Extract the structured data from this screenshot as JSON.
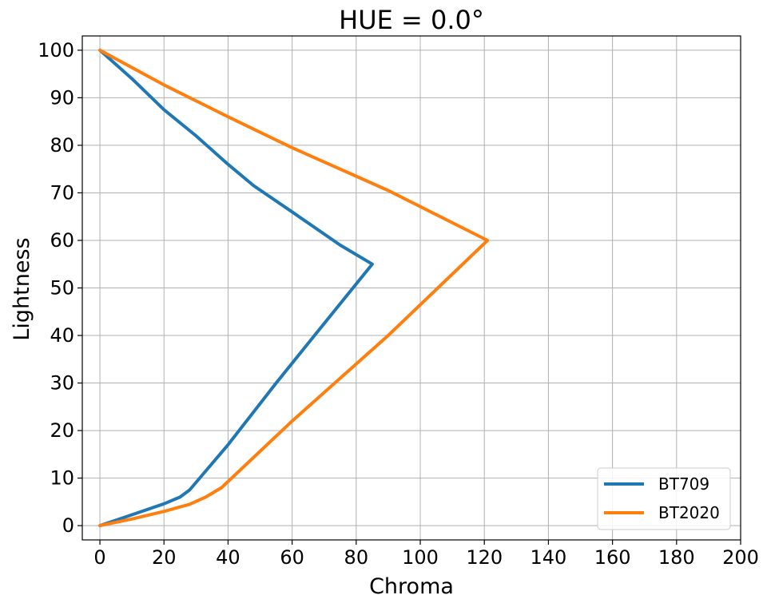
{
  "chart_data": {
    "type": "line",
    "title": "HUE = 0.0°",
    "xlabel": "Chroma",
    "ylabel": "Lightness",
    "xlim": [
      -5.5,
      200
    ],
    "ylim": [
      -3,
      103
    ],
    "xticks": [
      0,
      20,
      40,
      60,
      80,
      100,
      120,
      140,
      160,
      180,
      200
    ],
    "yticks": [
      0,
      10,
      20,
      30,
      40,
      50,
      60,
      70,
      80,
      90,
      100
    ],
    "grid": true,
    "legend_position": "lower-right",
    "series": [
      {
        "name": "BT709",
        "color": "#1f77b4",
        "points": [
          [
            0,
            0
          ],
          [
            10,
            2.3
          ],
          [
            20,
            4.6
          ],
          [
            25,
            6.0
          ],
          [
            28,
            7.5
          ],
          [
            40,
            17
          ],
          [
            55,
            30
          ],
          [
            70,
            42.5
          ],
          [
            85,
            55
          ],
          [
            75,
            59
          ],
          [
            60,
            66
          ],
          [
            48,
            71.5
          ],
          [
            40,
            76
          ],
          [
            30,
            82
          ],
          [
            20,
            87.5
          ],
          [
            10,
            94
          ],
          [
            0,
            100
          ]
        ]
      },
      {
        "name": "BT2020",
        "color": "#ff7f0e",
        "points": [
          [
            0,
            0
          ],
          [
            10,
            1.4
          ],
          [
            20,
            3.0
          ],
          [
            28,
            4.5
          ],
          [
            33,
            6.0
          ],
          [
            38,
            8.0
          ],
          [
            60,
            22
          ],
          [
            90,
            40
          ],
          [
            121,
            60
          ],
          [
            90,
            70.5
          ],
          [
            60,
            79.5
          ],
          [
            40,
            86
          ],
          [
            20,
            92.7
          ],
          [
            0,
            100
          ]
        ]
      }
    ]
  }
}
